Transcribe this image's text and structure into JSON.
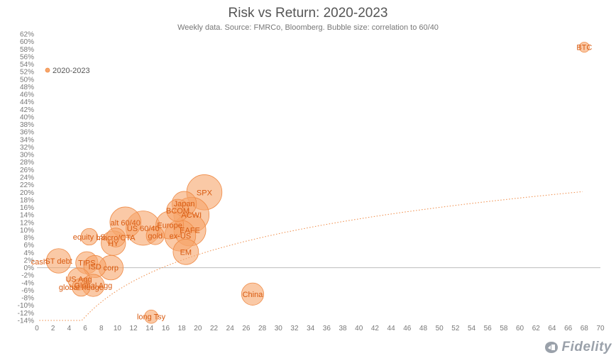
{
  "chart_data": {
    "type": "scatter",
    "title": "Risk vs Return: 2020-2023",
    "subtitle": "Weekly data.  Source: FMRCo, Bloomberg.  Bubble size: correlation to 60/40",
    "xlim": [
      0,
      70
    ],
    "ylim": [
      -14,
      62
    ],
    "x_ticks": [
      0,
      2,
      4,
      6,
      8,
      10,
      12,
      14,
      16,
      18,
      20,
      22,
      24,
      26,
      28,
      30,
      32,
      34,
      36,
      38,
      40,
      42,
      44,
      46,
      48,
      50,
      52,
      54,
      56,
      58,
      60,
      62,
      64,
      66,
      68,
      70
    ],
    "y_ticks": [
      -14,
      -12,
      -10,
      -8,
      -6,
      -4,
      -2,
      0,
      2,
      4,
      6,
      8,
      10,
      12,
      14,
      16,
      18,
      20,
      22,
      24,
      26,
      28,
      30,
      32,
      34,
      36,
      38,
      40,
      42,
      44,
      46,
      48,
      50,
      52,
      54,
      56,
      58,
      60,
      62
    ],
    "y_tick_suffix": "%",
    "grid": false,
    "legend": {
      "position": "top-left",
      "label": "2020-2023"
    },
    "bubble_color": "#f7a56a",
    "bubble_edge_color": "#ef8a45",
    "label_color": "#d85a10",
    "trendline_color": "#ef8a45",
    "points": [
      {
        "label": "BTC",
        "x": 68.0,
        "y": 58.5,
        "size": 0.18
      },
      {
        "label": "SPX",
        "x": 20.8,
        "y": 20.0,
        "size": 0.95
      },
      {
        "label": "Japan",
        "x": 18.3,
        "y": 17.0,
        "size": 0.62
      },
      {
        "label": "BCOM",
        "x": 17.5,
        "y": 15.2,
        "size": 0.55
      },
      {
        "label": "ACWI",
        "x": 19.2,
        "y": 14.0,
        "size": 0.95
      },
      {
        "label": "alt 60/40",
        "x": 11.0,
        "y": 12.0,
        "size": 0.82
      },
      {
        "label": "US 60/40",
        "x": 13.2,
        "y": 10.5,
        "size": 0.92
      },
      {
        "label": "Europe",
        "x": 16.5,
        "y": 11.3,
        "size": 0.72
      },
      {
        "label": "EAFE",
        "x": 19.0,
        "y": 10.0,
        "size": 0.85
      },
      {
        "label": "gold",
        "x": 14.7,
        "y": 8.5,
        "size": 0.42
      },
      {
        "label": "ex-US",
        "x": 17.8,
        "y": 8.5,
        "size": 0.82
      },
      {
        "label": "macro/CTA",
        "x": 9.8,
        "y": 8.0,
        "size": 0.45
      },
      {
        "label": "equity LS",
        "x": 6.5,
        "y": 8.2,
        "size": 0.38
      },
      {
        "label": "HY",
        "x": 9.5,
        "y": 6.5,
        "size": 0.62
      },
      {
        "label": "EM",
        "x": 18.5,
        "y": 4.2,
        "size": 0.65
      },
      {
        "label": "cash",
        "x": 0.3,
        "y": 1.6,
        "size": 0.0
      },
      {
        "label": "ST debt",
        "x": 2.7,
        "y": 1.8,
        "size": 0.62
      },
      {
        "label": "TIPS",
        "x": 6.2,
        "y": 1.3,
        "size": 0.55
      },
      {
        "label": "ISD",
        "x": 7.2,
        "y": 0.3,
        "size": 0.55
      },
      {
        "label": "corp",
        "x": 9.2,
        "y": 0.0,
        "size": 0.62
      },
      {
        "label": "US Agg",
        "x": 5.2,
        "y": -3.0,
        "size": 0.55
      },
      {
        "label": "Global Agg",
        "x": 7.0,
        "y": -4.7,
        "size": 0.55
      },
      {
        "label": "global hedge",
        "x": 5.5,
        "y": -5.2,
        "size": 0.42
      },
      {
        "label": "China",
        "x": 26.8,
        "y": -7.0,
        "size": 0.55
      },
      {
        "label": "long Tsy",
        "x": 14.2,
        "y": -13.0,
        "size": 0.28
      }
    ]
  },
  "brand": {
    "name": "Fidelity",
    "icon": "fidelity-shield-icon"
  }
}
